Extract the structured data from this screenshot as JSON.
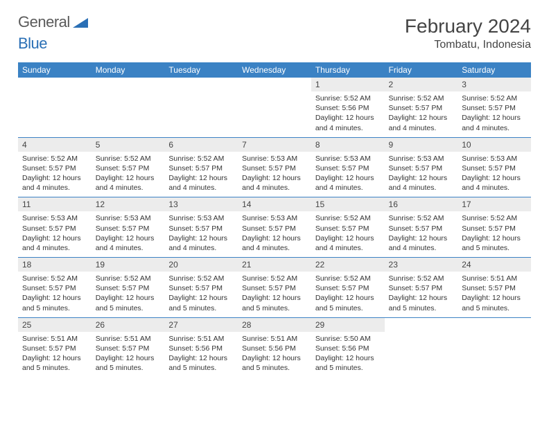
{
  "logo": {
    "word1": "General",
    "word2": "Blue"
  },
  "title": "February 2024",
  "location": "Tombatu, Indonesia",
  "colors": {
    "header_bg": "#3b82c4",
    "header_text": "#ffffff",
    "daynum_bg": "#ececec",
    "row_divider": "#3b82c4",
    "logo_gray": "#5a5a5a",
    "logo_blue": "#2a6fb5"
  },
  "day_headers": [
    "Sunday",
    "Monday",
    "Tuesday",
    "Wednesday",
    "Thursday",
    "Friday",
    "Saturday"
  ],
  "first_weekday_index": 4,
  "days": [
    {
      "n": "1",
      "sunrise": "5:52 AM",
      "sunset": "5:56 PM",
      "daylight": "12 hours and 4 minutes."
    },
    {
      "n": "2",
      "sunrise": "5:52 AM",
      "sunset": "5:57 PM",
      "daylight": "12 hours and 4 minutes."
    },
    {
      "n": "3",
      "sunrise": "5:52 AM",
      "sunset": "5:57 PM",
      "daylight": "12 hours and 4 minutes."
    },
    {
      "n": "4",
      "sunrise": "5:52 AM",
      "sunset": "5:57 PM",
      "daylight": "12 hours and 4 minutes."
    },
    {
      "n": "5",
      "sunrise": "5:52 AM",
      "sunset": "5:57 PM",
      "daylight": "12 hours and 4 minutes."
    },
    {
      "n": "6",
      "sunrise": "5:52 AM",
      "sunset": "5:57 PM",
      "daylight": "12 hours and 4 minutes."
    },
    {
      "n": "7",
      "sunrise": "5:53 AM",
      "sunset": "5:57 PM",
      "daylight": "12 hours and 4 minutes."
    },
    {
      "n": "8",
      "sunrise": "5:53 AM",
      "sunset": "5:57 PM",
      "daylight": "12 hours and 4 minutes."
    },
    {
      "n": "9",
      "sunrise": "5:53 AM",
      "sunset": "5:57 PM",
      "daylight": "12 hours and 4 minutes."
    },
    {
      "n": "10",
      "sunrise": "5:53 AM",
      "sunset": "5:57 PM",
      "daylight": "12 hours and 4 minutes."
    },
    {
      "n": "11",
      "sunrise": "5:53 AM",
      "sunset": "5:57 PM",
      "daylight": "12 hours and 4 minutes."
    },
    {
      "n": "12",
      "sunrise": "5:53 AM",
      "sunset": "5:57 PM",
      "daylight": "12 hours and 4 minutes."
    },
    {
      "n": "13",
      "sunrise": "5:53 AM",
      "sunset": "5:57 PM",
      "daylight": "12 hours and 4 minutes."
    },
    {
      "n": "14",
      "sunrise": "5:53 AM",
      "sunset": "5:57 PM",
      "daylight": "12 hours and 4 minutes."
    },
    {
      "n": "15",
      "sunrise": "5:52 AM",
      "sunset": "5:57 PM",
      "daylight": "12 hours and 4 minutes."
    },
    {
      "n": "16",
      "sunrise": "5:52 AM",
      "sunset": "5:57 PM",
      "daylight": "12 hours and 4 minutes."
    },
    {
      "n": "17",
      "sunrise": "5:52 AM",
      "sunset": "5:57 PM",
      "daylight": "12 hours and 5 minutes."
    },
    {
      "n": "18",
      "sunrise": "5:52 AM",
      "sunset": "5:57 PM",
      "daylight": "12 hours and 5 minutes."
    },
    {
      "n": "19",
      "sunrise": "5:52 AM",
      "sunset": "5:57 PM",
      "daylight": "12 hours and 5 minutes."
    },
    {
      "n": "20",
      "sunrise": "5:52 AM",
      "sunset": "5:57 PM",
      "daylight": "12 hours and 5 minutes."
    },
    {
      "n": "21",
      "sunrise": "5:52 AM",
      "sunset": "5:57 PM",
      "daylight": "12 hours and 5 minutes."
    },
    {
      "n": "22",
      "sunrise": "5:52 AM",
      "sunset": "5:57 PM",
      "daylight": "12 hours and 5 minutes."
    },
    {
      "n": "23",
      "sunrise": "5:52 AM",
      "sunset": "5:57 PM",
      "daylight": "12 hours and 5 minutes."
    },
    {
      "n": "24",
      "sunrise": "5:51 AM",
      "sunset": "5:57 PM",
      "daylight": "12 hours and 5 minutes."
    },
    {
      "n": "25",
      "sunrise": "5:51 AM",
      "sunset": "5:57 PM",
      "daylight": "12 hours and 5 minutes."
    },
    {
      "n": "26",
      "sunrise": "5:51 AM",
      "sunset": "5:57 PM",
      "daylight": "12 hours and 5 minutes."
    },
    {
      "n": "27",
      "sunrise": "5:51 AM",
      "sunset": "5:56 PM",
      "daylight": "12 hours and 5 minutes."
    },
    {
      "n": "28",
      "sunrise": "5:51 AM",
      "sunset": "5:56 PM",
      "daylight": "12 hours and 5 minutes."
    },
    {
      "n": "29",
      "sunrise": "5:50 AM",
      "sunset": "5:56 PM",
      "daylight": "12 hours and 5 minutes."
    }
  ],
  "labels": {
    "sunrise": "Sunrise:",
    "sunset": "Sunset:",
    "daylight": "Daylight:"
  }
}
